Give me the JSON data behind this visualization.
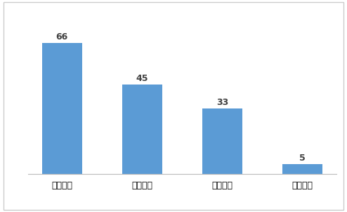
{
  "categories": [
    "东亚銀行",
    "花旗銀行",
    "汇丰銀行",
    "渣打銀行"
  ],
  "values": [
    66,
    45,
    33,
    5
  ],
  "bar_color": "#5B9BD5",
  "label_color": "#404040",
  "label_fontsize": 9,
  "bar_width": 0.5,
  "ylim": [
    0,
    75
  ],
  "background_color": "#FFFFFF",
  "border_color": "#BBBBBB",
  "tick_fontsize": 9,
  "value_label_fontweight": "bold",
  "figure_border_color": "#CCCCCC",
  "figure_border_linewidth": 1.0
}
